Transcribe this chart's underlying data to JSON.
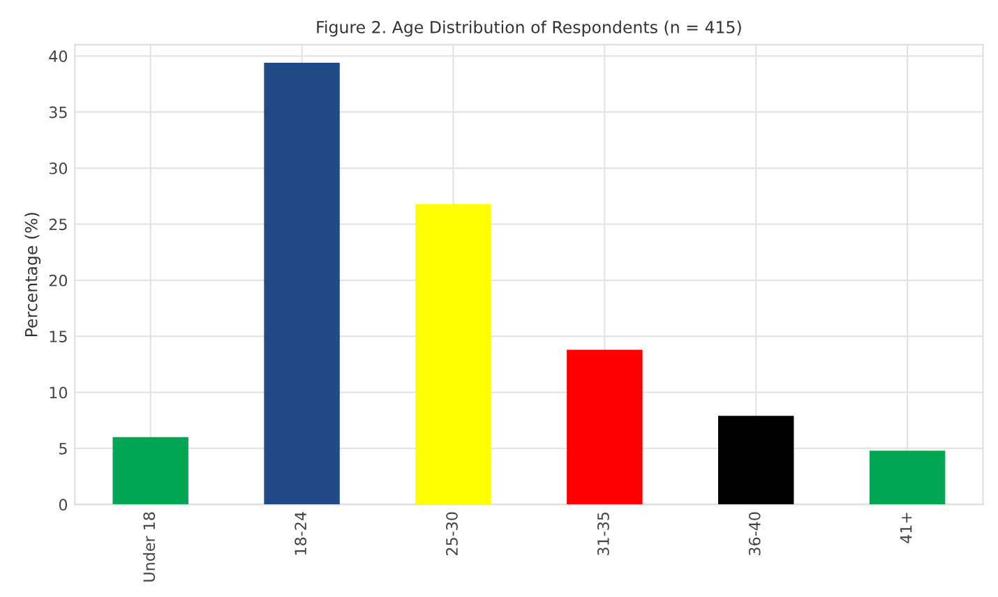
{
  "chart_data": {
    "type": "bar",
    "title": "Figure 2. Age Distribution of Respondents (n = 415)",
    "ylabel": "Percentage (%)",
    "categories": [
      "Under 18",
      "18-24",
      "25-30",
      "31-35",
      "36-40",
      "41+"
    ],
    "values": [
      6.0,
      39.4,
      26.8,
      13.8,
      7.9,
      4.8
    ],
    "colors": [
      "#00a651",
      "#1f4a87",
      "#ffff00",
      "#ff0000",
      "#000000",
      "#00a651"
    ],
    "ylim": [
      0,
      41
    ],
    "yticks": [
      0,
      5,
      10,
      15,
      20,
      25,
      30,
      35,
      40
    ],
    "grid": true
  }
}
